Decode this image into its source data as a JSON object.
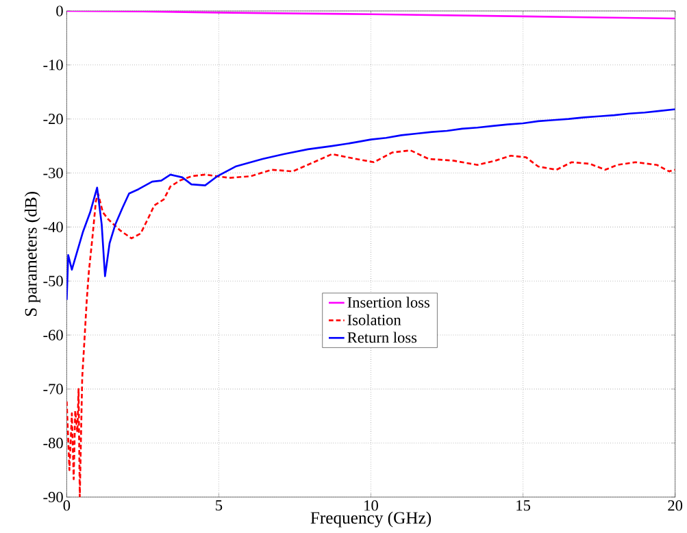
{
  "chart_data": {
    "type": "line",
    "xlabel": "Frequency (GHz)",
    "ylabel": "S parameters (dB)",
    "xlim": [
      0,
      20
    ],
    "ylim": [
      -90,
      0
    ],
    "xticks": [
      0,
      5,
      10,
      15,
      20
    ],
    "yticks": [
      -90,
      -80,
      -70,
      -60,
      -50,
      -40,
      -30,
      -20,
      -10,
      0
    ],
    "grid": true,
    "legend": "center",
    "marker": "none",
    "series": [
      {
        "name": "Insertion loss",
        "color": "#ff00ff",
        "line_style": "solid",
        "x": [
          0,
          2.5,
          5,
          7.5,
          10,
          12.5,
          15,
          17.5,
          20
        ],
        "values": [
          0,
          -0.1,
          -0.3,
          -0.45,
          -0.6,
          -0.8,
          -1.0,
          -1.2,
          -1.4
        ]
      },
      {
        "name": "Isolation",
        "color": "#ff0000",
        "line_style": "dashed",
        "x": [
          0,
          0.09,
          0.17,
          0.23,
          0.28,
          0.35,
          0.39,
          0.43,
          0.51,
          0.58,
          0.66,
          0.73,
          0.85,
          0.96,
          1.03,
          1.19,
          1.37,
          1.75,
          2.13,
          2.43,
          2.66,
          2.88,
          3.19,
          3.41,
          3.72,
          4.1,
          4.55,
          5.35,
          6.04,
          6.74,
          7.43,
          8.12,
          8.72,
          9.51,
          10.1,
          10.7,
          11.3,
          11.9,
          12.7,
          13.5,
          14.1,
          14.6,
          15.1,
          15.5,
          16.1,
          16.6,
          17.2,
          17.7,
          18.1,
          18.7,
          19.4,
          19.8,
          20
        ],
        "values": [
          -72.3,
          -85,
          -74.5,
          -86.7,
          -74,
          -78,
          -70,
          -90,
          -67.9,
          -61.3,
          -53.5,
          -48.2,
          -41.7,
          -35.2,
          -33.8,
          -37.3,
          -38.6,
          -40.6,
          -42.1,
          -41.2,
          -38.6,
          -36,
          -34.9,
          -32.5,
          -31.4,
          -30.6,
          -30.3,
          -30.9,
          -30.6,
          -29.4,
          -29.7,
          -28,
          -26.5,
          -27.4,
          -28,
          -26.2,
          -25.8,
          -27.4,
          -27.7,
          -28.5,
          -27.7,
          -26.8,
          -27.1,
          -28.8,
          -29.4,
          -28,
          -28.3,
          -29.4,
          -28.5,
          -28,
          -28.5,
          -29.7,
          -29.4
        ]
      },
      {
        "name": "Return loss",
        "color": "#0000ff",
        "line_style": "solid",
        "x": [
          0,
          0.05,
          0.17,
          0.32,
          0.54,
          0.77,
          1.0,
          1.15,
          1.26,
          1.41,
          1.6,
          1.83,
          2.05,
          2.36,
          2.81,
          3.11,
          3.41,
          3.8,
          4.1,
          4.55,
          4.95,
          5.55,
          6.44,
          7.13,
          7.93,
          8.72,
          9.3,
          9.5,
          10,
          10.5,
          11,
          11.5,
          12,
          12.5,
          13,
          13.5,
          14,
          14.5,
          15,
          15.5,
          16,
          16.5,
          17,
          17.5,
          18,
          18.5,
          19,
          19.5,
          20
        ],
        "values": [
          -53.5,
          -45.2,
          -47.9,
          -45,
          -40.8,
          -37.3,
          -32.7,
          -39.5,
          -49.1,
          -43,
          -39.5,
          -36.5,
          -33.8,
          -33,
          -31.6,
          -31.4,
          -30.3,
          -30.8,
          -32.1,
          -32.3,
          -30.6,
          -28.8,
          -27.4,
          -26.5,
          -25.6,
          -25,
          -24.5,
          -24.3,
          -23.8,
          -23.5,
          -23,
          -22.7,
          -22.4,
          -22.2,
          -21.8,
          -21.6,
          -21.3,
          -21,
          -20.8,
          -20.4,
          -20.2,
          -20,
          -19.7,
          -19.5,
          -19.3,
          -19,
          -18.8,
          -18.5,
          -18.2
        ]
      }
    ]
  }
}
